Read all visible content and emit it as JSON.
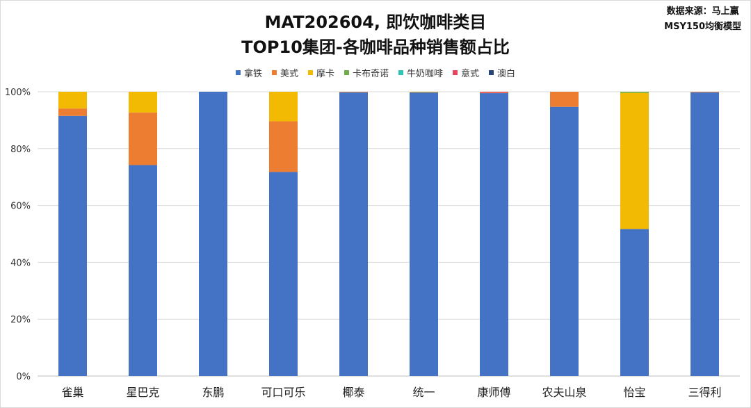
{
  "chart_data": {
    "type": "bar",
    "stacked": true,
    "title_line1": "MAT202604, 即饮咖啡类目",
    "title_line2": "TOP10集团-各咖啡品种销售额占比",
    "source_line1": "数据来源：马上赢",
    "source_line2": "MSY150均衡模型",
    "ylim": [
      0,
      1
    ],
    "yticks": [
      "0%",
      "20%",
      "40%",
      "60%",
      "80%",
      "100%"
    ],
    "grid": true,
    "legend_position": "top",
    "categories": [
      "雀巢",
      "星巴克",
      "东鹏",
      "可口可乐",
      "椰泰",
      "统一",
      "康师傅",
      "农夫山泉",
      "怡宝",
      "三得利"
    ],
    "series": [
      {
        "name": "拿铁",
        "color": "#4472C4",
        "values": [
          0.915,
          0.742,
          1.0,
          0.718,
          0.998,
          0.998,
          0.995,
          0.947,
          0.517,
          0.998
        ]
      },
      {
        "name": "美式",
        "color": "#ED7D31",
        "values": [
          0.026,
          0.185,
          0.0,
          0.178,
          0.002,
          0.0,
          0.002,
          0.053,
          0.0,
          0.002
        ]
      },
      {
        "name": "摩卡",
        "color": "#F2BA02",
        "values": [
          0.059,
          0.073,
          0.0,
          0.104,
          0.0,
          0.002,
          0.0,
          0.0,
          0.479,
          0.0
        ]
      },
      {
        "name": "卡布奇诺",
        "color": "#70AD47",
        "values": [
          0,
          0,
          0,
          0,
          0,
          0,
          0,
          0,
          0.004,
          0
        ]
      },
      {
        "name": "牛奶咖啡",
        "color": "#2EC4B6",
        "values": [
          0,
          0,
          0,
          0,
          0,
          0,
          0,
          0,
          0,
          0
        ]
      },
      {
        "name": "意式",
        "color": "#E8455E",
        "values": [
          0,
          0,
          0,
          0,
          0,
          0,
          0.003,
          0,
          0,
          0
        ]
      },
      {
        "name": "澳白",
        "color": "#264478",
        "values": [
          0,
          0,
          0,
          0,
          0,
          0,
          0,
          0,
          0,
          0
        ]
      }
    ]
  }
}
